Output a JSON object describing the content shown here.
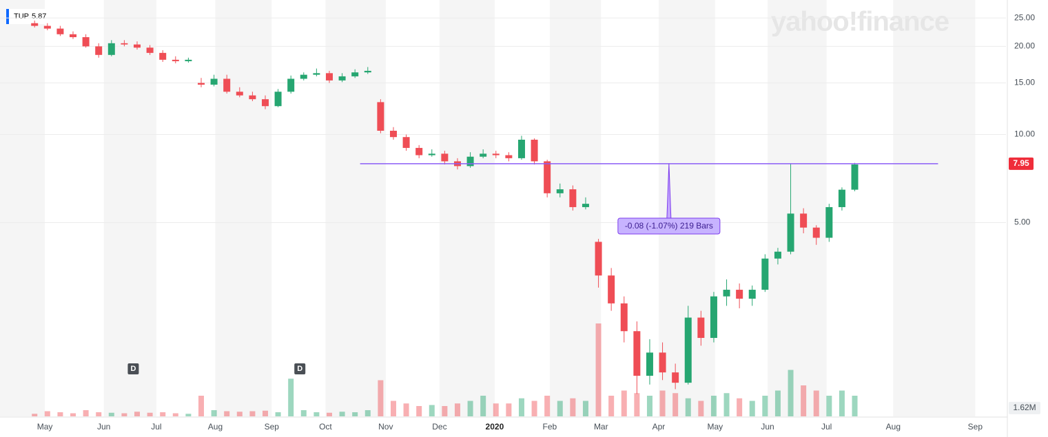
{
  "chart_data": {
    "type": "candlestick",
    "brand": "yahoo!finance",
    "ticker": "TUP",
    "ticker_price": 5.87,
    "log_scale": true,
    "grid": true,
    "up_color": "#26a671",
    "down_color": "#ef4d55",
    "ylim": [
      1.12,
      28.8
    ],
    "yticks": [
      {
        "value": 25,
        "label": "25.00"
      },
      {
        "value": 20,
        "label": "20.00"
      },
      {
        "value": 15,
        "label": "15.00"
      },
      {
        "value": 10,
        "label": "10.00"
      },
      {
        "value": 5,
        "label": "5.00"
      }
    ],
    "xlim": [
      -2.7,
      75.8
    ],
    "xticks": [
      {
        "value": 0.8,
        "label": "May"
      },
      {
        "value": 5.4,
        "label": "Jun"
      },
      {
        "value": 9.5,
        "label": "Jul"
      },
      {
        "value": 14.1,
        "label": "Aug"
      },
      {
        "value": 18.5,
        "label": "Sep"
      },
      {
        "value": 22.7,
        "label": "Oct"
      },
      {
        "value": 27.4,
        "label": "Nov"
      },
      {
        "value": 31.6,
        "label": "Dec"
      },
      {
        "value": 35.9,
        "label": "2020"
      },
      {
        "value": 40.2,
        "label": "Feb"
      },
      {
        "value": 44.2,
        "label": "Mar"
      },
      {
        "value": 48.7,
        "label": "Apr"
      },
      {
        "value": 53.1,
        "label": "May"
      },
      {
        "value": 57.2,
        "label": "Jun"
      },
      {
        "value": 61.8,
        "label": "Jul"
      },
      {
        "value": 67.0,
        "label": "Aug"
      },
      {
        "value": 73.4,
        "label": "Sep"
      }
    ],
    "open": [
      24,
      23.5,
      23,
      22,
      21.5,
      20,
      18.7,
      20.5,
      20.3,
      19.8,
      19,
      18,
      17.8,
      15,
      14.8,
      15.5,
      14,
      13.6,
      13.2,
      12.5,
      14,
      15.5,
      16,
      16.2,
      15.3,
      15.8,
      16.3,
      12.9,
      10.3,
      9.8,
      9,
      8.5,
      8.6,
      8.1,
      7.8,
      8.4,
      8.6,
      8.5,
      8.3,
      9.6,
      8.1,
      6.3,
      6.5,
      5.65,
      4.3,
      3.3,
      2.65,
      2.13,
      1.5,
      1.8,
      1.54,
      1.42,
      2.37,
      2.02,
      2.8,
      2.95,
      2.75,
      2.95,
      3.77,
      3.98,
      5.37,
      4.81,
      4.44,
      5.65,
      6.48
    ],
    "high": [
      24.5,
      24,
      23.5,
      22.5,
      22,
      20.5,
      21,
      21,
      20.8,
      20.2,
      19.4,
      18.5,
      18.3,
      15.6,
      16,
      16,
      14.5,
      14,
      13.6,
      14.3,
      15.9,
      16.3,
      16.8,
      16.5,
      16.2,
      16.7,
      17,
      13.2,
      10.6,
      10,
      9.2,
      8.9,
      8.8,
      8.3,
      8.7,
      8.9,
      8.8,
      8.7,
      9.9,
      9.7,
      8.2,
      6.8,
      6.7,
      6.1,
      4.4,
      3.5,
      2.8,
      2.3,
      2.0,
      1.95,
      1.65,
      2.6,
      2.5,
      2.9,
      3.2,
      3.1,
      3.05,
      3.9,
      4.1,
      7.95,
      5.6,
      4.9,
      5.8,
      6.6,
      8.0
    ],
    "low": [
      23.2,
      22.7,
      21.7,
      21.2,
      19.8,
      18.3,
      18.5,
      20,
      19.5,
      18.7,
      17.7,
      17.5,
      17.6,
      14.5,
      14.6,
      13.8,
      13.4,
      13,
      12.2,
      12.4,
      13.8,
      15.3,
      15.8,
      15,
      15.1,
      15.6,
      16.1,
      10.1,
      9.6,
      8.8,
      8.3,
      8.4,
      7.9,
      7.6,
      7.7,
      8.3,
      8.3,
      8.1,
      8.2,
      7.9,
      6.1,
      6.1,
      5.5,
      5.55,
      3.0,
      2.5,
      1.95,
      1.3,
      1.4,
      1.45,
      1.35,
      1.4,
      1.9,
      1.95,
      2.6,
      2.55,
      2.6,
      2.9,
      3.6,
      3.9,
      4.6,
      4.2,
      4.3,
      5.5,
      6.4
    ],
    "close": [
      23.5,
      23,
      22,
      21.5,
      20,
      18.7,
      20.5,
      20.3,
      19.8,
      19,
      18,
      17.8,
      18,
      14.8,
      15.5,
      14,
      13.6,
      13.2,
      12.5,
      14,
      15.5,
      16,
      16.2,
      15.3,
      15.8,
      16.3,
      16.5,
      10.3,
      9.8,
      9,
      8.5,
      8.6,
      8.1,
      7.8,
      8.4,
      8.6,
      8.5,
      8.3,
      9.6,
      8.1,
      6.3,
      6.5,
      5.65,
      5.8,
      3.3,
      2.65,
      2.13,
      1.5,
      1.8,
      1.54,
      1.42,
      2.37,
      2.02,
      2.8,
      2.95,
      2.75,
      2.95,
      3.77,
      3.98,
      5.37,
      4.81,
      4.44,
      5.65,
      6.48,
      7.9
    ],
    "volume": [
      0.5,
      1,
      0.8,
      0.6,
      1.2,
      0.8,
      0.7,
      0.6,
      0.9,
      0.7,
      0.8,
      0.6,
      0.5,
      4,
      1.2,
      1,
      0.9,
      1,
      1.1,
      0.8,
      7.3,
      1.2,
      0.8,
      0.7,
      0.9,
      0.8,
      1.2,
      7,
      3,
      2.5,
      2,
      2.2,
      2,
      2.5,
      3,
      4,
      2.5,
      2.5,
      3.5,
      3,
      4,
      3,
      3.5,
      3,
      18,
      4,
      5,
      4.5,
      4,
      5,
      4.5,
      3.5,
      3,
      4,
      4.5,
      3.5,
      3,
      4,
      5,
      9,
      6,
      5,
      4,
      5,
      4
    ],
    "volume_lim": [
      0,
      20
    ],
    "volume_tick": {
      "value": 1.62,
      "label": "1.62M"
    },
    "last_price": 7.95,
    "trend_line": {
      "value": 7.95,
      "x_start": 25.4,
      "x_end": 70.5
    },
    "measurement": {
      "x": 49.5,
      "label": "-0.08 (-1.07%) 219 Bars"
    },
    "dividends": [
      {
        "x": 7.7,
        "label": "D"
      },
      {
        "x": 20.7,
        "label": "D"
      }
    ]
  }
}
